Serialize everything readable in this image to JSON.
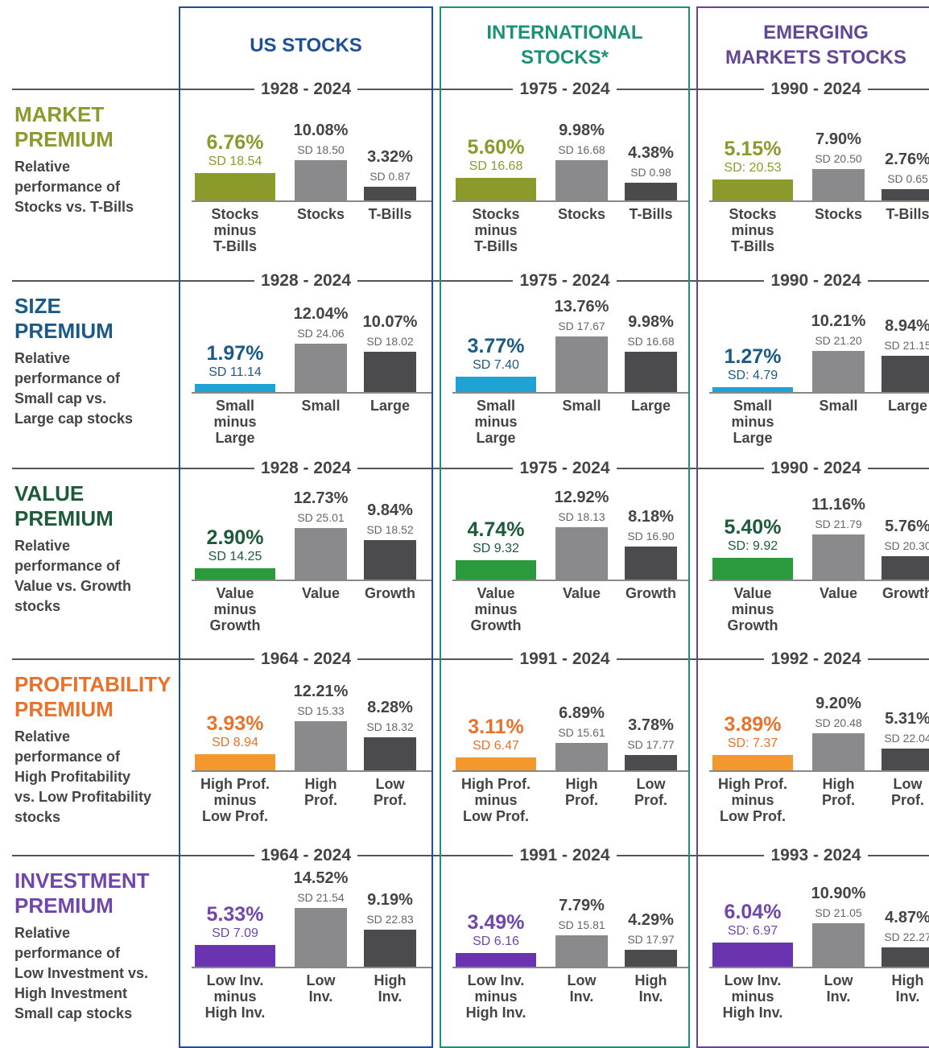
{
  "chart_data": {
    "type": "bar",
    "columns": [
      {
        "title": "US STOCKS",
        "color": "#1d4f9c"
      },
      {
        "title": "INTERNATIONAL\nSTOCKS*",
        "color": "#1b9275"
      },
      {
        "title": "EMERGING\nMARKETS STOCKS",
        "color": "#634795"
      }
    ],
    "rows": [
      {
        "title": "MARKET\nPREMIUM",
        "description": "Relative\nperformance of\nStocks vs. T-Bills",
        "title_color": "#8c9a2c",
        "bar_color": "#8c9a2c",
        "cells": [
          {
            "period": "1928 - 2024",
            "bars": [
              {
                "value": 6.76,
                "value_label": "6.76%",
                "sd": "SD 18.54",
                "name": "Stocks\nminus\nT-Bills"
              },
              {
                "value": 10.08,
                "value_label": "10.08%",
                "sd": "SD 18.50",
                "name": "Stocks"
              },
              {
                "value": 3.32,
                "value_label": "3.32%",
                "sd": "SD 0.87",
                "name": "T-Bills"
              }
            ]
          },
          {
            "period": "1975 - 2024",
            "bars": [
              {
                "value": 5.6,
                "value_label": "5.60%",
                "sd": "SD 16.68",
                "name": "Stocks\nminus\nT-Bills"
              },
              {
                "value": 9.98,
                "value_label": "9.98%",
                "sd": "SD 16.68",
                "name": "Stocks"
              },
              {
                "value": 4.38,
                "value_label": "4.38%",
                "sd": "SD 0.98",
                "name": "T-Bills"
              }
            ]
          },
          {
            "period": "1990 - 2024",
            "bars": [
              {
                "value": 5.15,
                "value_label": "5.15%",
                "sd": "SD: 20.53",
                "name": "Stocks\nminus\nT-Bills"
              },
              {
                "value": 7.9,
                "value_label": "7.90%",
                "sd": "SD 20.50",
                "name": "Stocks"
              },
              {
                "value": 2.76,
                "value_label": "2.76%",
                "sd": "SD 0.65",
                "name": "T-Bills"
              }
            ]
          }
        ]
      },
      {
        "title": "SIZE\nPREMIUM",
        "description": "Relative\nperformance of\nSmall cap vs.\nLarge cap stocks",
        "title_color": "#1b5a86",
        "bar_color": "#1ea3d4",
        "cells": [
          {
            "period": "1928 - 2024",
            "bars": [
              {
                "value": 1.97,
                "value_label": "1.97%",
                "sd": "SD 11.14",
                "name": "Small\nminus\nLarge"
              },
              {
                "value": 12.04,
                "value_label": "12.04%",
                "sd": "SD 24.06",
                "name": "Small"
              },
              {
                "value": 10.07,
                "value_label": "10.07%",
                "sd": "SD 18.02",
                "name": "Large"
              }
            ]
          },
          {
            "period": "1975 - 2024",
            "bars": [
              {
                "value": 3.77,
                "value_label": "3.77%",
                "sd": "SD 7.40",
                "name": "Small\nminus\nLarge"
              },
              {
                "value": 13.76,
                "value_label": "13.76%",
                "sd": "SD 17.67",
                "name": "Small"
              },
              {
                "value": 9.98,
                "value_label": "9.98%",
                "sd": "SD 16.68",
                "name": "Large"
              }
            ]
          },
          {
            "period": "1990 - 2024",
            "bars": [
              {
                "value": 1.27,
                "value_label": "1.27%",
                "sd": "SD: 4.79",
                "name": "Small\nminus\nLarge"
              },
              {
                "value": 10.21,
                "value_label": "10.21%",
                "sd": "SD 21.20",
                "name": "Small"
              },
              {
                "value": 8.94,
                "value_label": "8.94%",
                "sd": "SD 21.15",
                "name": "Large"
              }
            ]
          }
        ]
      },
      {
        "title": "VALUE\nPREMIUM",
        "description": "Relative\nperformance of\nValue vs. Growth\nstocks",
        "title_color": "#1d5a3a",
        "bar_color": "#2a9a3c",
        "cells": [
          {
            "period": "1928 - 2024",
            "bars": [
              {
                "value": 2.9,
                "value_label": "2.90%",
                "sd": "SD 14.25",
                "name": "Value\nminus\nGrowth"
              },
              {
                "value": 12.73,
                "value_label": "12.73%",
                "sd": "SD 25.01",
                "name": "Value"
              },
              {
                "value": 9.84,
                "value_label": "9.84%",
                "sd": "SD 18.52",
                "name": "Growth"
              }
            ]
          },
          {
            "period": "1975 - 2024",
            "bars": [
              {
                "value": 4.74,
                "value_label": "4.74%",
                "sd": "SD 9.32",
                "name": "Value\nminus\nGrowth"
              },
              {
                "value": 12.92,
                "value_label": "12.92%",
                "sd": "SD 18.13",
                "name": "Value"
              },
              {
                "value": 8.18,
                "value_label": "8.18%",
                "sd": "SD 16.90",
                "name": "Growth"
              }
            ]
          },
          {
            "period": "1990 - 2024",
            "bars": [
              {
                "value": 5.4,
                "value_label": "5.40%",
                "sd": "SD: 9.92",
                "name": "Value\nminus\nGrowth"
              },
              {
                "value": 11.16,
                "value_label": "11.16%",
                "sd": "SD 21.79",
                "name": "Value"
              },
              {
                "value": 5.76,
                "value_label": "5.76%",
                "sd": "SD 20.30",
                "name": "Growth"
              }
            ]
          }
        ]
      },
      {
        "title": "PROFITABILITY\nPREMIUM",
        "description": "Relative\nperformance of\nHigh Profitability\nvs. Low Profitability\nstocks",
        "title_color": "#e8722a",
        "bar_color": "#f2982c",
        "cells": [
          {
            "period": "1964 - 2024",
            "bars": [
              {
                "value": 3.93,
                "value_label": "3.93%",
                "sd": "SD 8.94",
                "name": "High Prof.\nminus\nLow Prof."
              },
              {
                "value": 12.21,
                "value_label": "12.21%",
                "sd": "SD 15.33",
                "name": "High\nProf."
              },
              {
                "value": 8.28,
                "value_label": "8.28%",
                "sd": "SD 18.32",
                "name": "Low\nProf."
              }
            ]
          },
          {
            "period": "1991 - 2024",
            "bars": [
              {
                "value": 3.11,
                "value_label": "3.11%",
                "sd": "SD 6.47",
                "name": "High Prof.\nminus\nLow Prof."
              },
              {
                "value": 6.89,
                "value_label": "6.89%",
                "sd": "SD 15.61",
                "name": "High\nProf."
              },
              {
                "value": 3.78,
                "value_label": "3.78%",
                "sd": "SD 17.77",
                "name": "Low\nProf."
              }
            ]
          },
          {
            "period": "1992 - 2024",
            "bars": [
              {
                "value": 3.89,
                "value_label": "3.89%",
                "sd": "SD: 7.37",
                "name": "High Prof.\nminus\nLow Prof."
              },
              {
                "value": 9.2,
                "value_label": "9.20%",
                "sd": "SD 20.48",
                "name": "High\nProf."
              },
              {
                "value": 5.31,
                "value_label": "5.31%",
                "sd": "SD 22.04",
                "name": "Low\nProf."
              }
            ]
          }
        ]
      },
      {
        "title": "INVESTMENT\nPREMIUM",
        "description": "Relative\nperformance of\nLow Investment vs.\nHigh Investment\nSmall cap stocks",
        "title_color": "#7046ad",
        "bar_color": "#6a34b0",
        "cells": [
          {
            "period": "1964 - 2024",
            "bars": [
              {
                "value": 5.33,
                "value_label": "5.33%",
                "sd": "SD 7.09",
                "name": "Low Inv.\nminus\nHigh Inv."
              },
              {
                "value": 14.52,
                "value_label": "14.52%",
                "sd": "SD 21.54",
                "name": "Low\nInv."
              },
              {
                "value": 9.19,
                "value_label": "9.19%",
                "sd": "SD 22.83",
                "name": "High\nInv."
              }
            ]
          },
          {
            "period": "1991 - 2024",
            "bars": [
              {
                "value": 3.49,
                "value_label": "3.49%",
                "sd": "SD 6.16",
                "name": "Low Inv.\nminus\nHigh Inv."
              },
              {
                "value": 7.79,
                "value_label": "7.79%",
                "sd": "SD 15.81",
                "name": "Low\nInv."
              },
              {
                "value": 4.29,
                "value_label": "4.29%",
                "sd": "SD 17.97",
                "name": "High\nInv."
              }
            ]
          },
          {
            "period": "1993 - 2024",
            "bars": [
              {
                "value": 6.04,
                "value_label": "6.04%",
                "sd": "SD: 6.97",
                "name": "Low Inv.\nminus\nHigh Inv."
              },
              {
                "value": 10.9,
                "value_label": "10.90%",
                "sd": "SD 21.05",
                "name": "Low\nInv."
              },
              {
                "value": 4.87,
                "value_label": "4.87%",
                "sd": "SD 22.27",
                "name": "High\nInv."
              }
            ]
          }
        ]
      }
    ]
  }
}
